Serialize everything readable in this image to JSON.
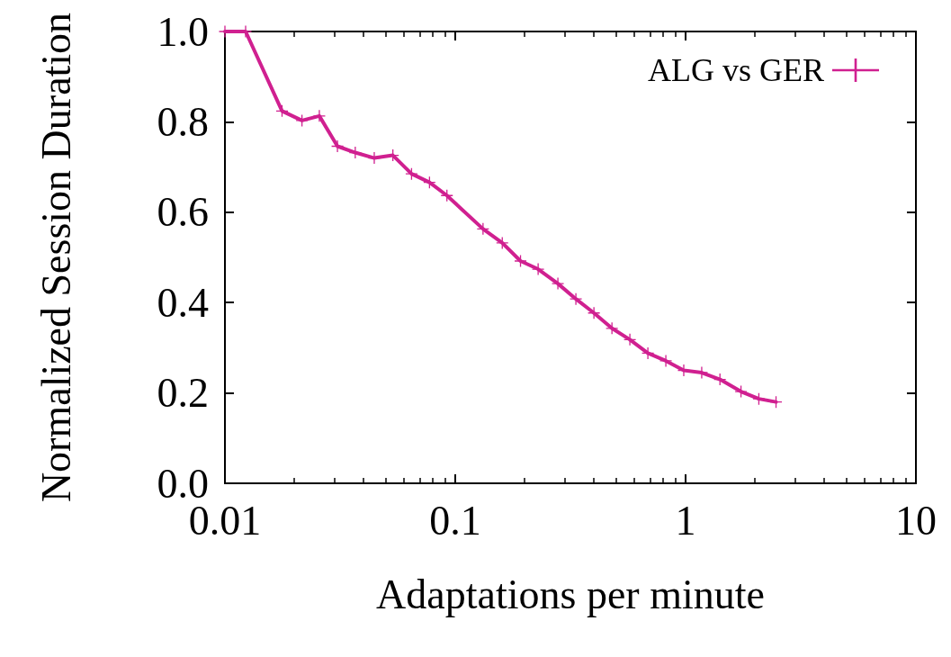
{
  "chart_data": {
    "type": "line",
    "xlabel": "Adaptations per minute",
    "ylabel": "Normalized Session Duration",
    "series": [
      {
        "name": "ALG vs GER",
        "color": "#d02090",
        "x": [
          0.01,
          0.0123,
          0.0177,
          0.0216,
          0.0257,
          0.0308,
          0.0368,
          0.0445,
          0.0536,
          0.0646,
          0.0773,
          0.092,
          0.132,
          0.16,
          0.192,
          0.229,
          0.279,
          0.334,
          0.4,
          0.479,
          0.573,
          0.686,
          0.821,
          0.982,
          1.175,
          1.41,
          1.74,
          2.08,
          2.47
        ],
        "values": [
          1.0,
          1.0,
          0.824,
          0.803,
          0.813,
          0.746,
          0.732,
          0.72,
          0.726,
          0.685,
          0.666,
          0.637,
          0.563,
          0.532,
          0.492,
          0.474,
          0.442,
          0.408,
          0.377,
          0.343,
          0.318,
          0.288,
          0.271,
          0.25,
          0.245,
          0.23,
          0.203,
          0.187,
          0.18
        ]
      }
    ],
    "log": "x",
    "xlim": [
      0.01,
      10
    ],
    "xticks": [
      0.01,
      0.1,
      1,
      10
    ],
    "ylim": [
      0,
      1
    ],
    "yticks": [
      {
        "value": 0,
        "label": "0.0"
      },
      0.2,
      0.4,
      0.6,
      0.8,
      {
        "value": 1,
        "label": "1.0"
      }
    ],
    "grid": false,
    "legend": "top right",
    "marker": "cross",
    "line_style": "solid"
  }
}
